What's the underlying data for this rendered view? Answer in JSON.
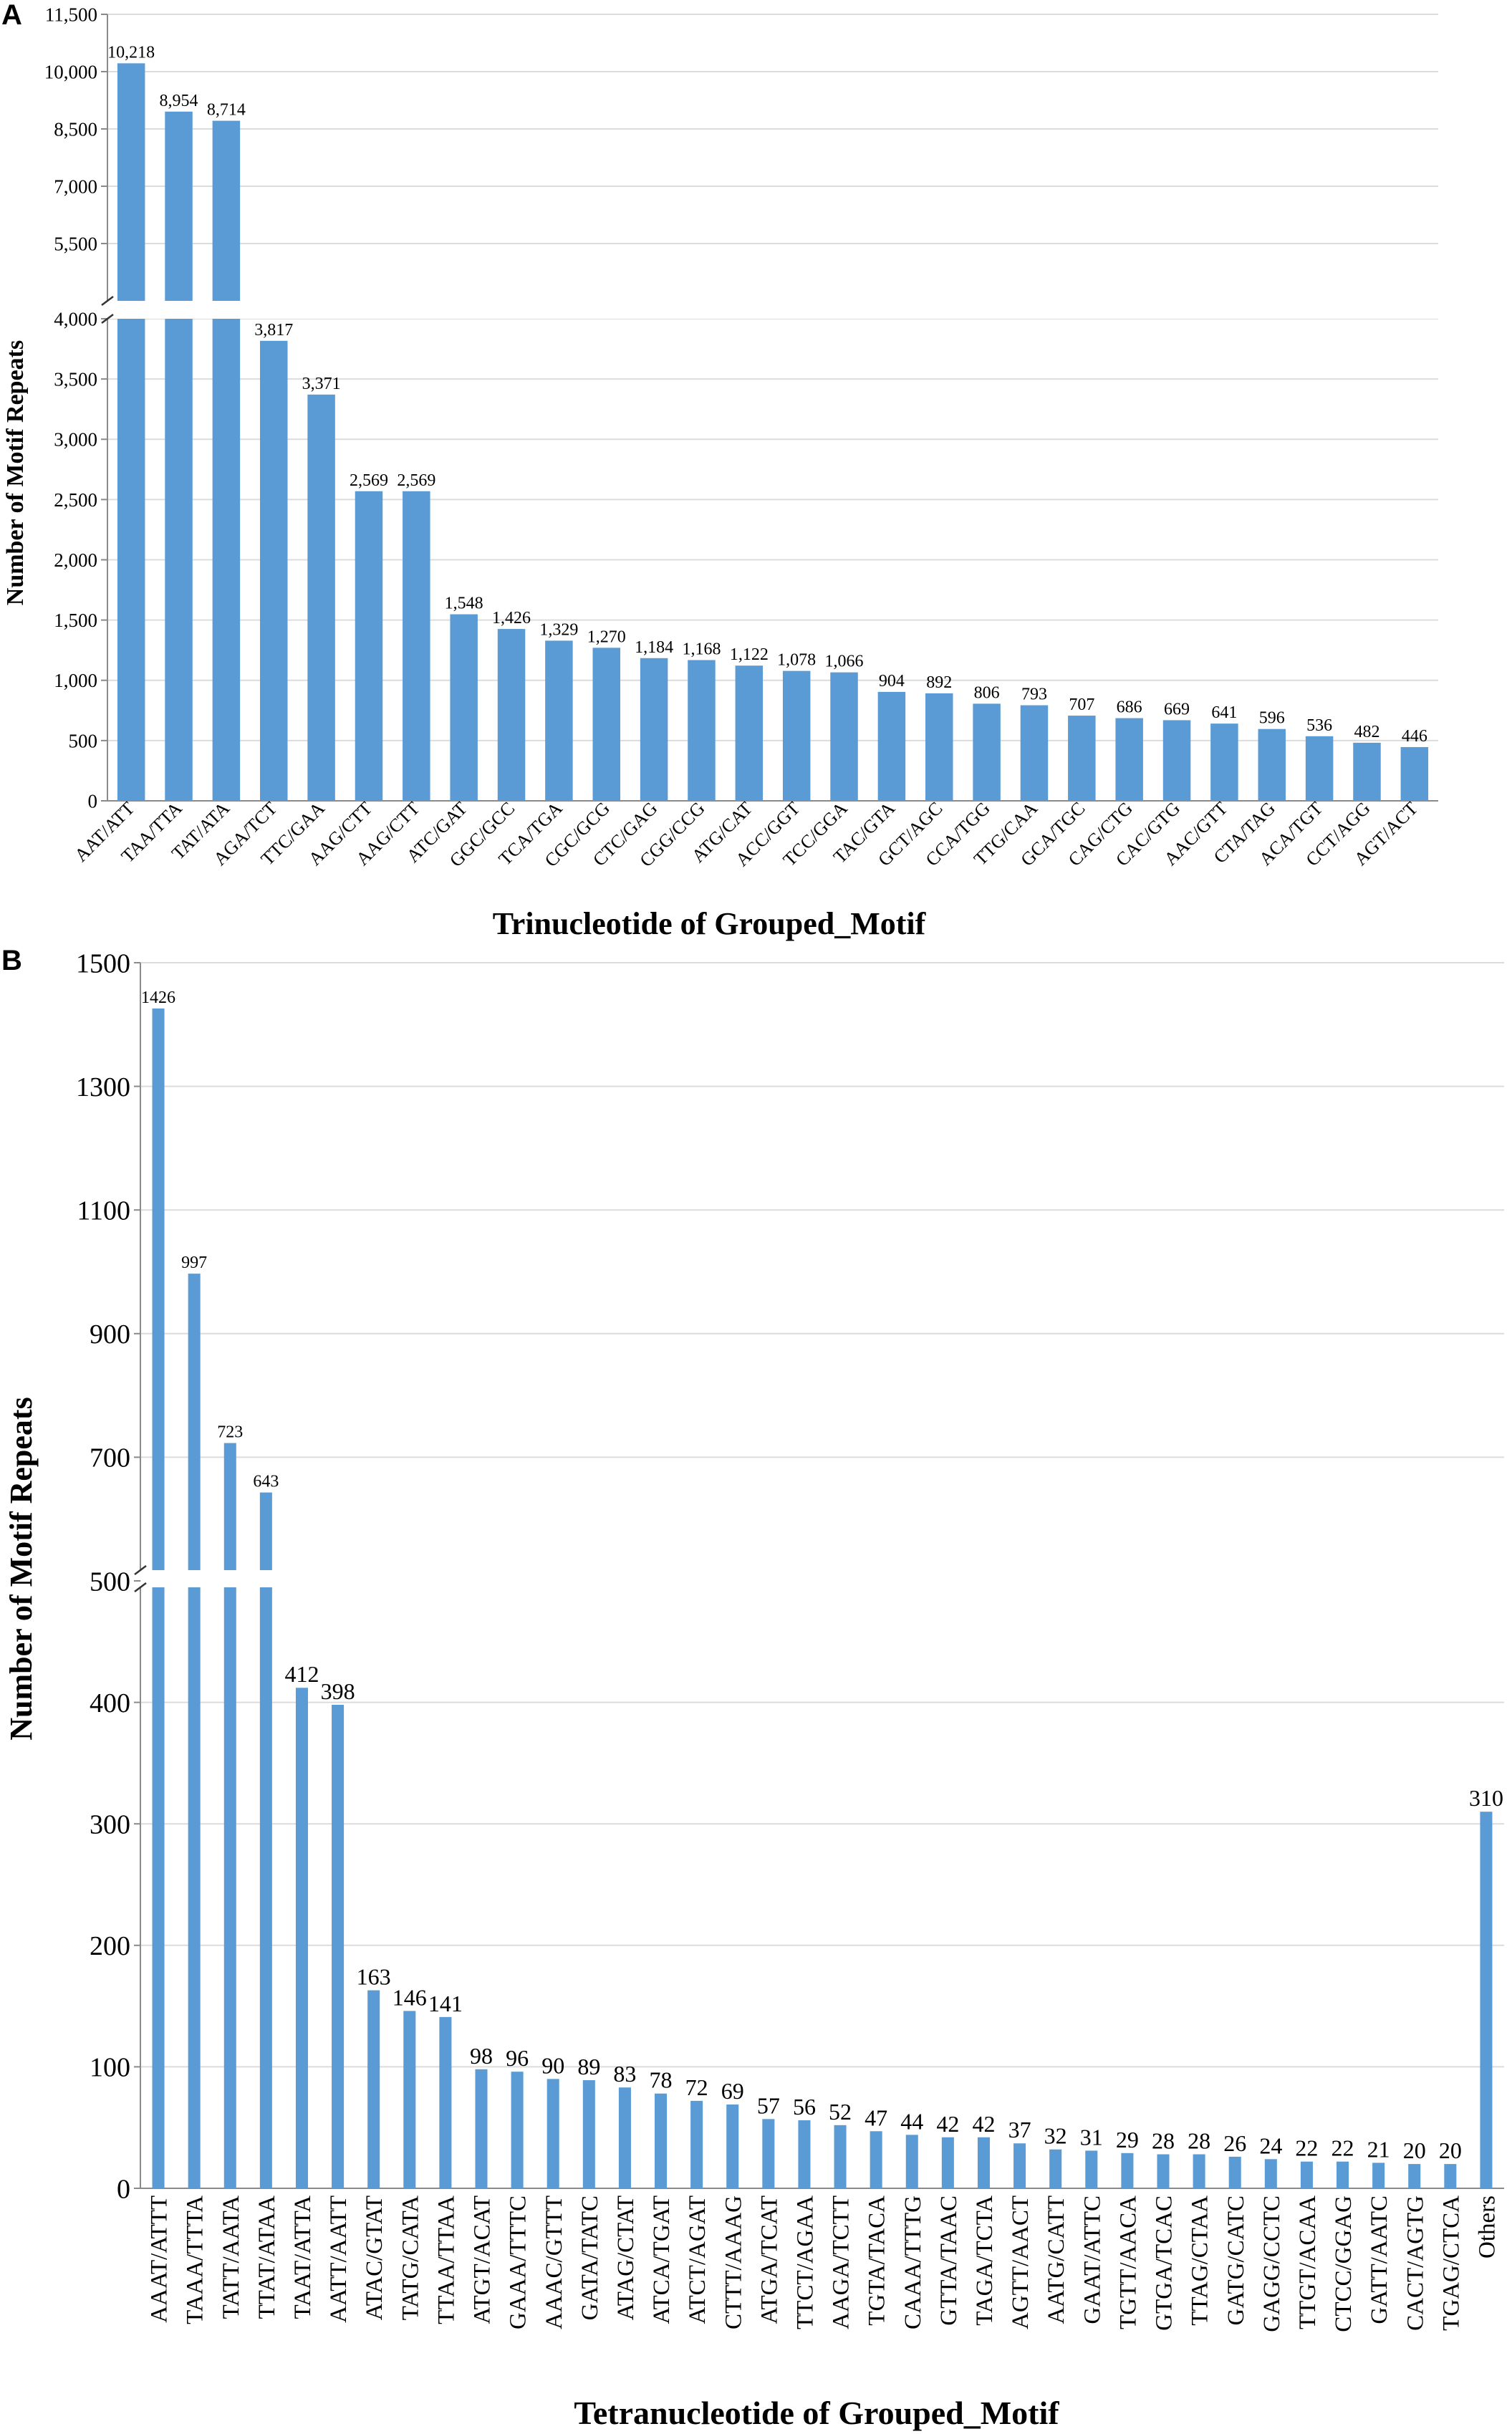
{
  "chart_data": [
    {
      "type": "bar",
      "panel": "A",
      "title": "",
      "xlabel": "Trinucleotide of Grouped_Motif",
      "ylabel": "Number of Motif Repeats",
      "axis_break": true,
      "lower_range": [
        0,
        4000
      ],
      "upper_range": [
        4000,
        11500
      ],
      "lower_ticks": [
        "0",
        "500",
        "1,000",
        "1,500",
        "2,000",
        "2,500",
        "3,000",
        "3,500",
        "4,000"
      ],
      "upper_ticks": [
        "5,500",
        "7,000",
        "8,500",
        "10,000",
        "11,500"
      ],
      "color": "#5b9bd5",
      "categories": [
        "AAT/ATT",
        "TAA/TTA",
        "TAT/ATA",
        "AGA/TCT",
        "TTC/GAA",
        "AAG/CTT",
        "AAG/CTT",
        "ATC/GAT",
        "GGC/GCC",
        "TCA/TGA",
        "CGC/GCG",
        "CTC/GAG",
        "CGG/CCG",
        "ATG/CAT",
        "ACC/GGT",
        "TCC/GGA",
        "TAC/GTA",
        "GCT/AGC",
        "CCA/TGG",
        "TTG/CAA",
        "GCA/TGC",
        "CAG/CTG",
        "CAC/GTG",
        "AAC/GTT",
        "CTA/TAG",
        "ACA/TGT",
        "CCT/AGG",
        "AGT/ACT"
      ],
      "values": [
        10218,
        8954,
        8714,
        3817,
        3371,
        2569,
        2569,
        1548,
        1426,
        1329,
        1270,
        1184,
        1168,
        1122,
        1078,
        1066,
        904,
        892,
        806,
        793,
        707,
        686,
        669,
        641,
        596,
        536,
        482,
        446
      ],
      "labels": [
        "10,218",
        "8,954",
        "8,714",
        "3,817",
        "3,371",
        "2,569",
        "2,569",
        "1,548",
        "1,426",
        "1,329",
        "1,270",
        "1,184",
        "1,168",
        "1,122",
        "1,078",
        "1,066",
        "904",
        "892",
        "806",
        "793",
        "707",
        "686",
        "669",
        "641",
        "596",
        "536",
        "482",
        "446"
      ]
    },
    {
      "type": "bar",
      "panel": "B",
      "title": "",
      "xlabel": "Tetranucleotide of Grouped_Motif",
      "ylabel": "Number of Motif Repeats",
      "axis_break": true,
      "lower_range": [
        0,
        500
      ],
      "upper_range": [
        500,
        1500
      ],
      "lower_ticks": [
        "0",
        "100",
        "200",
        "300",
        "400",
        "500"
      ],
      "upper_ticks": [
        "700",
        "900",
        "1100",
        "1300",
        "1500"
      ],
      "color": "#5b9bd5",
      "categories": [
        "AAAT/ATTT",
        "TAAA/TTTA",
        "TATT/AATA",
        "TTAT/ATAA",
        "TAAT/ATTA",
        "AATT/AATT",
        "ATAC/GTAT",
        "TATG/CATA",
        "TTAA/TTAA",
        "ATGT/ACAT",
        "GAAA/TTTC",
        "AAAC/GTTT",
        "GATA/TATC",
        "ATAG/CTAT",
        "ATCA/TGAT",
        "ATCT/AGAT",
        "CTTT/AAAG",
        "ATGA/TCAT",
        "TTCT/AGAA",
        "AAGA/TCTT",
        "TGTA/TACA",
        "CAAA/TTTG",
        "GTTA/TAAC",
        "TAGA/TCTA",
        "AGTT/AACT",
        "AATG/CATT",
        "GAAT/ATTC",
        "TGTT/AACA",
        "GTGA/TCAC",
        "TTAG/CTAA",
        "GATG/CATC",
        "GAGG/CCTC",
        "TTGT/ACAA",
        "CTCC/GGAG",
        "GATT/AATC",
        "CACT/AGTG",
        "TGAG/CTCA",
        "Others"
      ],
      "values": [
        1426,
        997,
        723,
        643,
        412,
        398,
        163,
        146,
        141,
        98,
        96,
        90,
        89,
        83,
        78,
        72,
        69,
        57,
        56,
        52,
        47,
        44,
        42,
        42,
        37,
        32,
        31,
        29,
        28,
        28,
        26,
        24,
        22,
        22,
        21,
        20,
        20,
        310
      ],
      "labels": [
        "1426",
        "997",
        "723",
        "643",
        "412",
        "398",
        "163",
        "146",
        "141",
        "98",
        "96",
        "90",
        "89",
        "83",
        "78",
        "72",
        "69",
        "57",
        "56",
        "52",
        "47",
        "44",
        "42",
        "42",
        "37",
        "32",
        "31",
        "29",
        "28",
        "28",
        "26",
        "24",
        "22",
        "22",
        "21",
        "20",
        "20",
        "310"
      ]
    }
  ],
  "panels": {
    "a": "A",
    "b": "B"
  }
}
